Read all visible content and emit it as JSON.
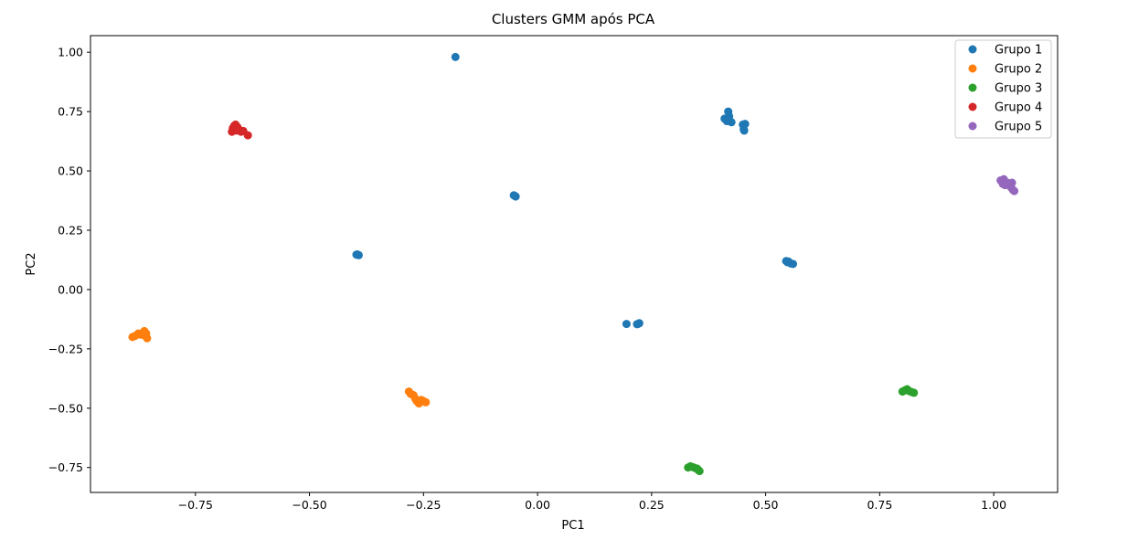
{
  "chart_data": {
    "type": "scatter",
    "title": "Clusters GMM após PCA",
    "xlabel": "PC1",
    "ylabel": "PC2",
    "xlim": [
      -0.98,
      1.14
    ],
    "ylim": [
      -0.855,
      1.07
    ],
    "xticks": [
      -0.75,
      -0.5,
      -0.25,
      0.0,
      0.25,
      0.5,
      0.75,
      1.0
    ],
    "xtick_labels": [
      "−0.75",
      "−0.50",
      "−0.25",
      "0.00",
      "0.25",
      "0.50",
      "0.75",
      "1.00"
    ],
    "yticks": [
      -0.75,
      -0.5,
      -0.25,
      0.0,
      0.25,
      0.5,
      0.75,
      1.0
    ],
    "ytick_labels": [
      "−0.75",
      "−0.50",
      "−0.25",
      "0.00",
      "0.25",
      "0.50",
      "0.75",
      "1.00"
    ],
    "grid": false,
    "legend_position": "top-right",
    "series": [
      {
        "name": "Grupo 1",
        "color": "#1f77b4",
        "points": [
          [
            -0.18,
            0.98
          ],
          [
            -0.05,
            0.395
          ],
          [
            -0.048,
            0.392
          ],
          [
            -0.052,
            0.397
          ],
          [
            -0.395,
            0.148
          ],
          [
            -0.392,
            0.145
          ],
          [
            -0.397,
            0.147
          ],
          [
            0.195,
            -0.145
          ],
          [
            0.22,
            -0.145
          ],
          [
            0.223,
            -0.142
          ],
          [
            0.218,
            -0.146
          ],
          [
            0.41,
            0.72
          ],
          [
            0.418,
            0.75
          ],
          [
            0.415,
            0.71
          ],
          [
            0.425,
            0.705
          ],
          [
            0.42,
            0.73
          ],
          [
            0.45,
            0.695
          ],
          [
            0.453,
            0.67
          ],
          [
            0.455,
            0.698
          ],
          [
            0.452,
            0.675
          ],
          [
            0.545,
            0.12
          ],
          [
            0.548,
            0.115
          ],
          [
            0.55,
            0.118
          ],
          [
            0.555,
            0.11
          ],
          [
            0.56,
            0.108
          ]
        ]
      },
      {
        "name": "Grupo 2",
        "color": "#ff7f0e",
        "points": [
          [
            -0.888,
            -0.2
          ],
          [
            -0.882,
            -0.195
          ],
          [
            -0.875,
            -0.185
          ],
          [
            -0.87,
            -0.19
          ],
          [
            -0.862,
            -0.175
          ],
          [
            -0.86,
            -0.195
          ],
          [
            -0.856,
            -0.205
          ],
          [
            -0.858,
            -0.185
          ],
          [
            -0.282,
            -0.43
          ],
          [
            -0.278,
            -0.44
          ],
          [
            -0.272,
            -0.445
          ],
          [
            -0.268,
            -0.46
          ],
          [
            -0.265,
            -0.47
          ],
          [
            -0.26,
            -0.48
          ],
          [
            -0.255,
            -0.465
          ],
          [
            -0.25,
            -0.47
          ],
          [
            -0.245,
            -0.475
          ]
        ]
      },
      {
        "name": "Grupo 3",
        "color": "#2ca02c",
        "points": [
          [
            0.33,
            -0.75
          ],
          [
            0.335,
            -0.745
          ],
          [
            0.34,
            -0.748
          ],
          [
            0.345,
            -0.752
          ],
          [
            0.35,
            -0.755
          ],
          [
            0.355,
            -0.765
          ],
          [
            0.352,
            -0.76
          ],
          [
            0.8,
            -0.43
          ],
          [
            0.805,
            -0.425
          ],
          [
            0.81,
            -0.42
          ],
          [
            0.815,
            -0.428
          ],
          [
            0.82,
            -0.432
          ],
          [
            0.825,
            -0.435
          ]
        ]
      },
      {
        "name": "Grupo 4",
        "color": "#d62728",
        "points": [
          [
            -0.67,
            0.665
          ],
          [
            -0.668,
            0.68
          ],
          [
            -0.665,
            0.69
          ],
          [
            -0.662,
            0.695
          ],
          [
            -0.66,
            0.67
          ],
          [
            -0.655,
            0.675
          ],
          [
            -0.65,
            0.665
          ],
          [
            -0.645,
            0.668
          ],
          [
            -0.635,
            0.65
          ],
          [
            -0.665,
            0.672
          ],
          [
            -0.658,
            0.685
          ]
        ]
      },
      {
        "name": "Grupo 5",
        "color": "#9467bd",
        "points": [
          [
            1.015,
            0.46
          ],
          [
            1.018,
            0.455
          ],
          [
            1.02,
            0.445
          ],
          [
            1.025,
            0.44
          ],
          [
            1.03,
            0.45
          ],
          [
            1.04,
            0.45
          ],
          [
            1.042,
            0.42
          ],
          [
            1.045,
            0.415
          ],
          [
            1.038,
            0.43
          ],
          [
            1.022,
            0.465
          ]
        ]
      }
    ]
  }
}
